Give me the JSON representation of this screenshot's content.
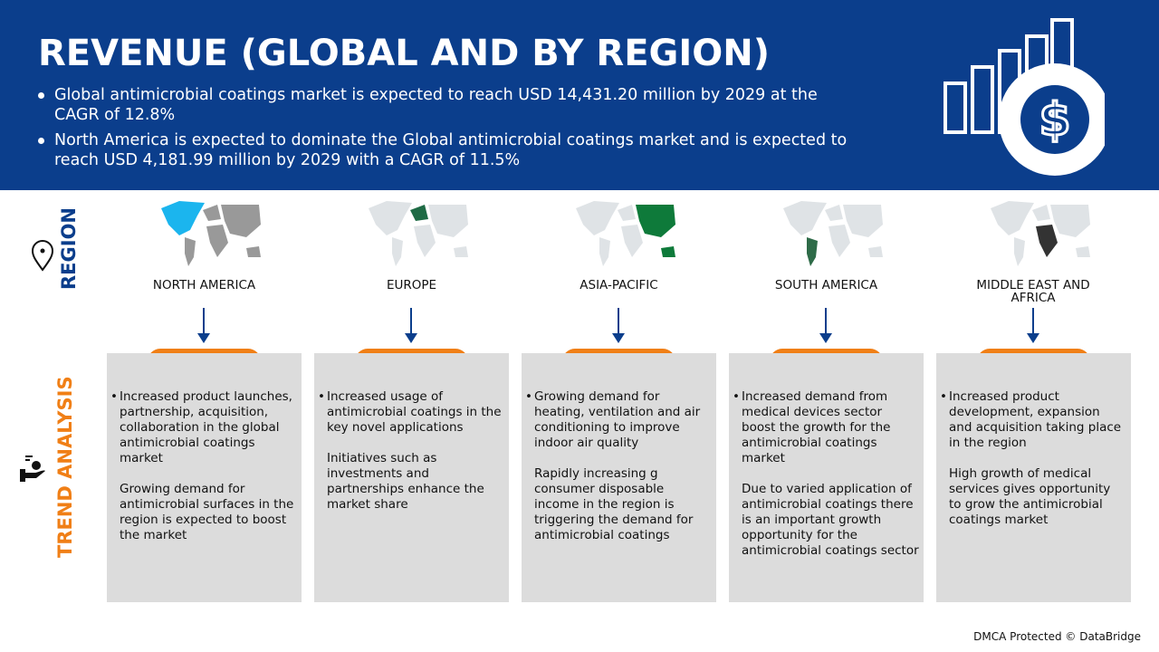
{
  "header": {
    "title": "REVENUE (GLOBAL AND BY REGION)",
    "bullets": [
      "Global antimicrobial coatings market is expected to reach USD 14,431.20 million by 2029 at the CAGR of 12.8%",
      "North America is expected to dominate the Global antimicrobial coatings market and is expected to reach USD 4,181.99 million by 2029 with a CAGR of 11.5%"
    ],
    "icon": "bar-chart-dollar-icon"
  },
  "side": {
    "region": "REGION",
    "trend": "TREND ANALYSIS"
  },
  "colors": {
    "blue": "#0b3e8c",
    "orange": "#f07f16",
    "box": "#dcdcdc",
    "highlight": [
      "#1bb5ee",
      "#1f6b45",
      "#0e7a3a",
      "#2e6b48",
      "#333333"
    ]
  },
  "regions": [
    {
      "name": "NORTH AMERICA",
      "p1": "Increased product launches, partnership, acquisition, collaboration in the global antimicrobial coatings market",
      "p2": "Growing demand for antimicrobial surfaces in the region is expected to boost the market"
    },
    {
      "name": "EUROPE",
      "p1": "Increased usage of antimicrobial coatings in the key novel applications",
      "p2": "Initiatives such as investments and partnerships enhance the market share"
    },
    {
      "name": "ASIA-PACIFIC",
      "p1": "Growing demand for heating, ventilation and air conditioning to improve indoor air quality",
      "p2": "Rapidly increasing g consumer disposable income in the region is triggering the demand for antimicrobial coatings"
    },
    {
      "name": "SOUTH AMERICA",
      "p1": "Increased demand from medical devices sector boost the growth for the antimicrobial coatings market",
      "p2": "Due to varied application of antimicrobial coatings there is an important growth opportunity for the antimicrobial coatings sector"
    },
    {
      "name": "MIDDLE EAST AND AFRICA",
      "p1": "Increased product development, expansion and acquisition taking place in the region",
      "p2": "High growth of medical services gives opportunity to grow the antimicrobial coatings market"
    }
  ],
  "footer": "DMCA Protected © DataBridge"
}
